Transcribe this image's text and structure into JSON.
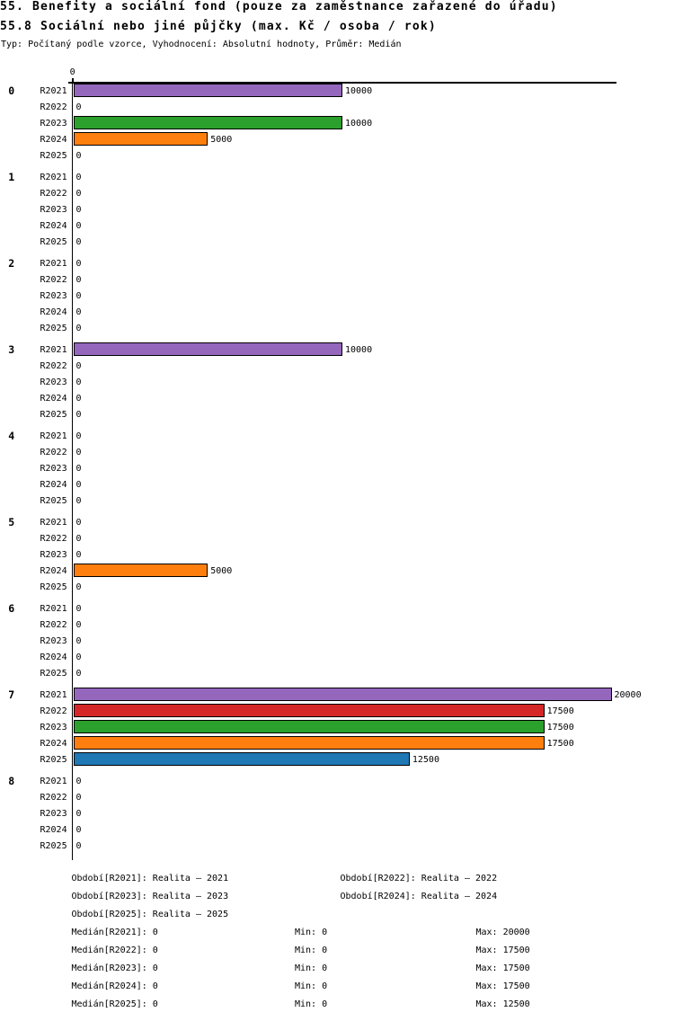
{
  "header": {
    "title_line1": "55. Benefity a sociální fond (pouze za zaměstnance zařazené do úřadu)",
    "title_line2": "55.8 Sociální nebo jiné půjčky (max. Kč / osoba / rok)",
    "subtitle": "Typ: Počítaný podle vzorce, Vyhodnocení: Absolutní hodnoty, Průměr: Medián"
  },
  "chart_data": {
    "type": "bar",
    "orientation": "horizontal",
    "title": "55.8 Sociální nebo jiné půjčky (max. Kč / osoba / rok)",
    "categories": [
      "0",
      "1",
      "2",
      "3",
      "4",
      "5",
      "6",
      "7",
      "8"
    ],
    "series_labels": [
      "R2021",
      "R2022",
      "R2023",
      "R2024",
      "R2025"
    ],
    "series_colors": [
      "#9467bd",
      "#d62728",
      "#2ca02c",
      "#ff7f0e",
      "#1f77b4"
    ],
    "series": [
      {
        "name": "R2021",
        "color": "#9467bd",
        "values": [
          10000,
          0,
          0,
          10000,
          0,
          0,
          0,
          20000,
          0
        ]
      },
      {
        "name": "R2022",
        "color": "#d62728",
        "values": [
          0,
          0,
          0,
          0,
          0,
          0,
          0,
          17500,
          0
        ]
      },
      {
        "name": "R2023",
        "color": "#2ca02c",
        "values": [
          10000,
          0,
          0,
          0,
          0,
          0,
          0,
          17500,
          0
        ]
      },
      {
        "name": "R2024",
        "color": "#ff7f0e",
        "values": [
          5000,
          0,
          0,
          0,
          0,
          5000,
          0,
          17500,
          0
        ]
      },
      {
        "name": "R2025",
        "color": "#1f77b4",
        "values": [
          0,
          0,
          0,
          0,
          0,
          0,
          0,
          12500,
          0
        ]
      }
    ],
    "value_axis": {
      "min": 0,
      "max_shown": 20000,
      "tick_labels": [
        "0"
      ],
      "position": "top"
    },
    "grid": false,
    "value_labels_shown": true,
    "axis_color": "#000000",
    "bar_outline_color": "#000000"
  },
  "legend": {
    "periods": [
      "Období[R2021]: Realita – 2021",
      "Období[R2022]: Realita – 2022",
      "Období[R2023]: Realita – 2023",
      "Období[R2024]: Realita – 2024",
      "Období[R2025]: Realita – 2025"
    ],
    "stats": [
      {
        "median": "Medián[R2021]: 0",
        "min": "Min: 0",
        "max": "Max: 20000"
      },
      {
        "median": "Medián[R2022]: 0",
        "min": "Min: 0",
        "max": "Max: 17500"
      },
      {
        "median": "Medián[R2023]: 0",
        "min": "Min: 0",
        "max": "Max: 17500"
      },
      {
        "median": "Medián[R2024]: 0",
        "min": "Min: 0",
        "max": "Max: 17500"
      },
      {
        "median": "Medián[R2025]: 0",
        "min": "Min: 0",
        "max": "Max: 12500"
      }
    ]
  }
}
